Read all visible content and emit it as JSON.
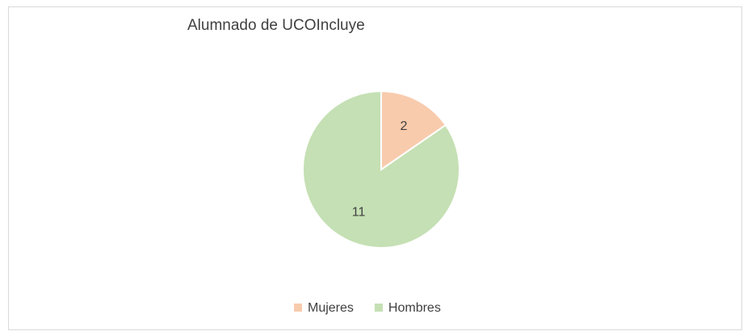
{
  "chart_data": {
    "type": "pie",
    "title": "Alumnado de UCOIncluye",
    "categories": [
      "Mujeres",
      "Hombres"
    ],
    "values": [
      2,
      11
    ],
    "colors": [
      "#f8cbad",
      "#c5e0b4"
    ],
    "legend": "bottom"
  }
}
